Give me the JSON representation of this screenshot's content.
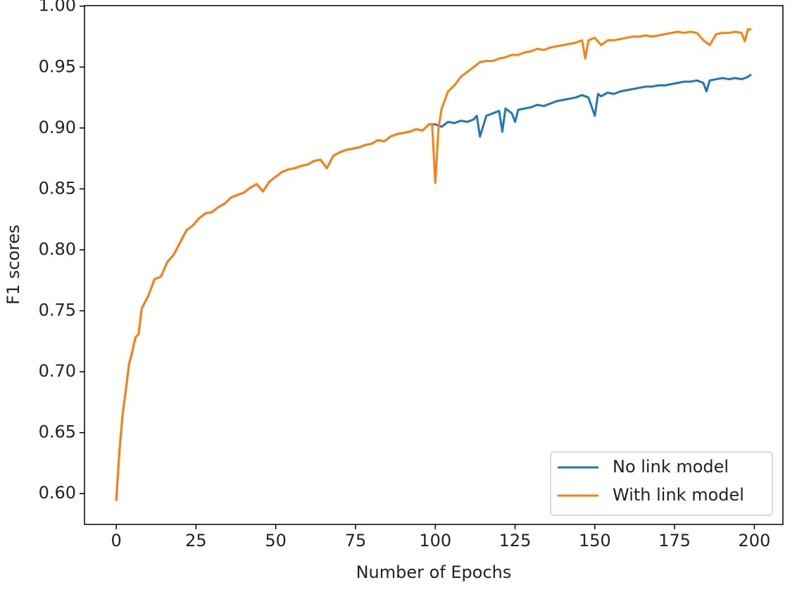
{
  "chart_data": {
    "type": "line",
    "xlabel": "Number of Epochs",
    "ylabel": "F1 scores",
    "xlim": [
      -9.95,
      208.95
    ],
    "ylim": [
      0.5747,
      1.0004
    ],
    "xticks": [
      0,
      25,
      50,
      75,
      100,
      125,
      150,
      175,
      200
    ],
    "yticks": [
      {
        "value": 0.6,
        "label": "0.60"
      },
      {
        "value": 0.65,
        "label": "0.65"
      },
      {
        "value": 0.7,
        "label": "0.70"
      },
      {
        "value": 0.75,
        "label": "0.75"
      },
      {
        "value": 0.8,
        "label": "0.80"
      },
      {
        "value": 0.85,
        "label": "0.85"
      },
      {
        "value": 0.9,
        "label": "0.90"
      },
      {
        "value": 0.95,
        "label": "0.95"
      },
      {
        "value": 1.0,
        "label": "1.00"
      }
    ],
    "legend": "lower right",
    "series": [
      {
        "name": "No link model",
        "color": "#1f77b4",
        "x": [
          0,
          1,
          2,
          3,
          4,
          5,
          6,
          7,
          8,
          10,
          12,
          14,
          16,
          18,
          20,
          22,
          24,
          26,
          28,
          30,
          32,
          34,
          36,
          38,
          40,
          42,
          44,
          46,
          48,
          50,
          52,
          54,
          56,
          58,
          60,
          62,
          64,
          66,
          68,
          70,
          72,
          74,
          76,
          78,
          80,
          82,
          84,
          86,
          88,
          90,
          92,
          94,
          96,
          98,
          99,
          100,
          101,
          102,
          104,
          106,
          108,
          110,
          112,
          113,
          114,
          116,
          118,
          120,
          121,
          122,
          124,
          125,
          126,
          128,
          130,
          132,
          134,
          136,
          138,
          140,
          142,
          144,
          146,
          148,
          150,
          151,
          152,
          154,
          156,
          158,
          160,
          162,
          164,
          166,
          168,
          170,
          172,
          174,
          176,
          178,
          180,
          182,
          184,
          185,
          186,
          188,
          190,
          192,
          194,
          196,
          198,
          199
        ],
        "values": [
          0.594,
          0.635,
          0.665,
          0.685,
          0.706,
          0.716,
          0.728,
          0.731,
          0.752,
          0.762,
          0.776,
          0.778,
          0.79,
          0.796,
          0.806,
          0.816,
          0.82,
          0.826,
          0.83,
          0.831,
          0.835,
          0.838,
          0.843,
          0.845,
          0.847,
          0.851,
          0.854,
          0.848,
          0.856,
          0.86,
          0.864,
          0.866,
          0.867,
          0.869,
          0.87,
          0.873,
          0.874,
          0.867,
          0.877,
          0.88,
          0.882,
          0.883,
          0.884,
          0.886,
          0.887,
          0.89,
          0.889,
          0.893,
          0.895,
          0.896,
          0.897,
          0.899,
          0.898,
          0.903,
          0.903,
          0.903,
          0.902,
          0.901,
          0.905,
          0.904,
          0.906,
          0.905,
          0.907,
          0.91,
          0.893,
          0.91,
          0.912,
          0.914,
          0.897,
          0.916,
          0.912,
          0.905,
          0.915,
          0.916,
          0.917,
          0.919,
          0.918,
          0.92,
          0.922,
          0.923,
          0.924,
          0.925,
          0.927,
          0.925,
          0.91,
          0.928,
          0.926,
          0.929,
          0.928,
          0.93,
          0.931,
          0.932,
          0.933,
          0.934,
          0.934,
          0.935,
          0.935,
          0.936,
          0.937,
          0.938,
          0.938,
          0.939,
          0.937,
          0.93,
          0.939,
          0.94,
          0.941,
          0.94,
          0.941,
          0.94,
          0.942,
          0.944
        ]
      },
      {
        "name": "With link model",
        "color": "#ff7f0e",
        "x": [
          0,
          1,
          2,
          3,
          4,
          5,
          6,
          7,
          8,
          10,
          12,
          14,
          16,
          18,
          20,
          22,
          24,
          26,
          28,
          30,
          32,
          34,
          36,
          38,
          40,
          42,
          44,
          46,
          48,
          50,
          52,
          54,
          56,
          58,
          60,
          62,
          64,
          66,
          68,
          70,
          72,
          74,
          76,
          78,
          80,
          82,
          84,
          86,
          88,
          90,
          92,
          94,
          96,
          98,
          99,
          100,
          101,
          102,
          104,
          106,
          108,
          110,
          112,
          114,
          116,
          118,
          120,
          122,
          124,
          126,
          128,
          130,
          132,
          134,
          136,
          138,
          140,
          142,
          144,
          146,
          147,
          148,
          150,
          152,
          154,
          156,
          158,
          160,
          162,
          164,
          166,
          168,
          170,
          172,
          174,
          176,
          178,
          180,
          182,
          184,
          186,
          188,
          190,
          192,
          194,
          196,
          197,
          198,
          199
        ],
        "values": [
          0.594,
          0.635,
          0.665,
          0.685,
          0.706,
          0.716,
          0.728,
          0.731,
          0.752,
          0.762,
          0.776,
          0.778,
          0.79,
          0.796,
          0.806,
          0.816,
          0.82,
          0.826,
          0.83,
          0.831,
          0.835,
          0.838,
          0.843,
          0.845,
          0.847,
          0.851,
          0.854,
          0.848,
          0.856,
          0.86,
          0.864,
          0.866,
          0.867,
          0.869,
          0.87,
          0.873,
          0.874,
          0.867,
          0.877,
          0.88,
          0.882,
          0.883,
          0.884,
          0.886,
          0.887,
          0.89,
          0.889,
          0.893,
          0.895,
          0.896,
          0.897,
          0.899,
          0.898,
          0.903,
          0.903,
          0.855,
          0.9,
          0.916,
          0.93,
          0.935,
          0.942,
          0.946,
          0.95,
          0.954,
          0.955,
          0.955,
          0.957,
          0.958,
          0.96,
          0.96,
          0.962,
          0.963,
          0.965,
          0.964,
          0.966,
          0.967,
          0.968,
          0.969,
          0.97,
          0.972,
          0.957,
          0.972,
          0.974,
          0.968,
          0.972,
          0.972,
          0.973,
          0.974,
          0.975,
          0.975,
          0.976,
          0.975,
          0.976,
          0.977,
          0.978,
          0.979,
          0.978,
          0.979,
          0.978,
          0.972,
          0.968,
          0.977,
          0.978,
          0.978,
          0.979,
          0.978,
          0.971,
          0.981,
          0.981
        ]
      }
    ]
  }
}
